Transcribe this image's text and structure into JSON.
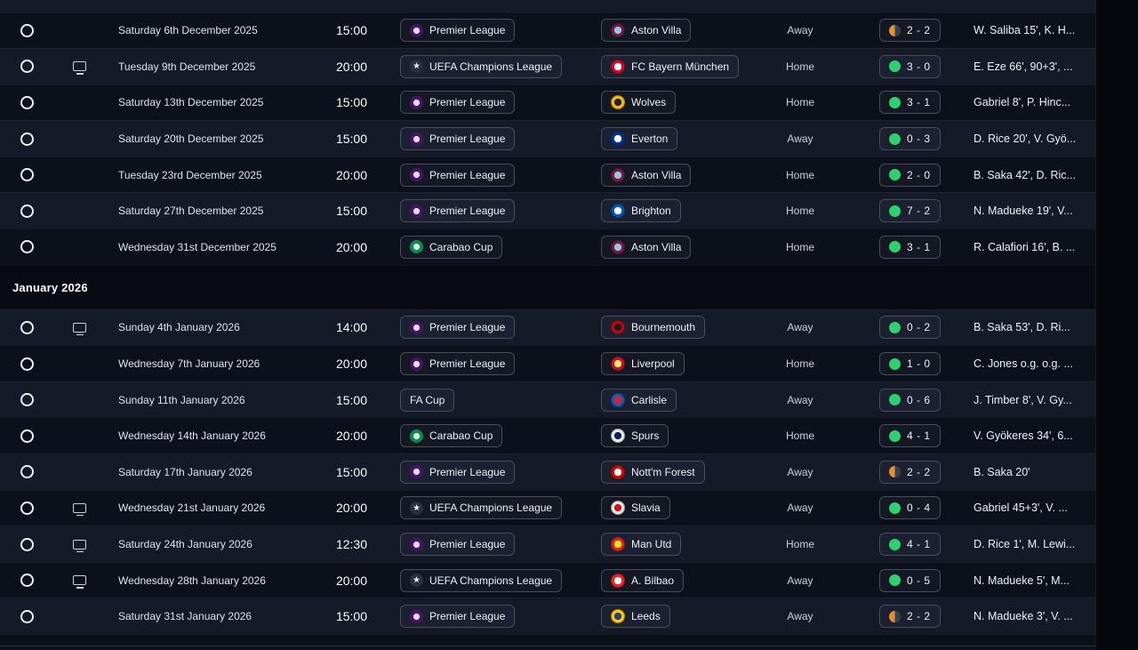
{
  "list": {
    "sections": [
      {
        "header": "",
        "rows": [
          {
            "date": "Saturday 6th December 2025",
            "time": "15:00",
            "competition": "Premier League",
            "opponent": "Aston Villa",
            "venue": "Away",
            "score": "2 - 2",
            "result": "draw",
            "scorers": "W. Saliba 15', K. H...",
            "tv": false
          },
          {
            "date": "Tuesday 9th December 2025",
            "time": "20:00",
            "competition": "UEFA Champions League",
            "opponent": "FC Bayern München",
            "venue": "Home",
            "score": "3 - 0",
            "result": "win",
            "scorers": "E. Eze 66', 90+3', ...",
            "tv": true
          },
          {
            "date": "Saturday 13th December 2025",
            "time": "15:00",
            "competition": "Premier League",
            "opponent": "Wolves",
            "venue": "Home",
            "score": "3 - 1",
            "result": "win",
            "scorers": "Gabriel 8', P. Hinc...",
            "tv": false
          },
          {
            "date": "Saturday 20th December 2025",
            "time": "15:00",
            "competition": "Premier League",
            "opponent": "Everton",
            "venue": "Away",
            "score": "0 - 3",
            "result": "win",
            "scorers": "D. Rice 20', V. Gyö...",
            "tv": false
          },
          {
            "date": "Tuesday 23rd December 2025",
            "time": "20:00",
            "competition": "Premier League",
            "opponent": "Aston Villa",
            "venue": "Home",
            "score": "2 - 0",
            "result": "win",
            "scorers": "B. Saka 42', D. Ric...",
            "tv": false
          },
          {
            "date": "Saturday 27th December 2025",
            "time": "15:00",
            "competition": "Premier League",
            "opponent": "Brighton",
            "venue": "Home",
            "score": "7 - 2",
            "result": "win",
            "scorers": "N. Madueke 19', V...",
            "tv": false
          },
          {
            "date": "Wednesday 31st December 2025",
            "time": "20:00",
            "competition": "Carabao Cup",
            "opponent": "Aston Villa",
            "venue": "Home",
            "score": "3 - 1",
            "result": "win",
            "scorers": "R. Calafiori 16', B. ...",
            "tv": false
          }
        ]
      },
      {
        "header": "January 2026",
        "rows": [
          {
            "date": "Sunday 4th January 2026",
            "time": "14:00",
            "competition": "Premier League",
            "opponent": "Bournemouth",
            "venue": "Away",
            "score": "0 - 2",
            "result": "win",
            "scorers": "B. Saka 53', D. Ri...",
            "tv": true
          },
          {
            "date": "Wednesday 7th January 2026",
            "time": "20:00",
            "competition": "Premier League",
            "opponent": "Liverpool",
            "venue": "Home",
            "score": "1 - 0",
            "result": "win",
            "scorers": "C. Jones o.g. o.g. ...",
            "tv": false
          },
          {
            "date": "Sunday 11th January 2026",
            "time": "15:00",
            "competition": "FA Cup",
            "opponent": "Carlisle",
            "venue": "Away",
            "score": "0 - 6",
            "result": "win",
            "scorers": "J. Timber 8', V. Gy...",
            "tv": false
          },
          {
            "date": "Wednesday 14th January 2026",
            "time": "20:00",
            "competition": "Carabao Cup",
            "opponent": "Spurs",
            "venue": "Home",
            "score": "4 - 1",
            "result": "win",
            "scorers": "V. Gyökeres 34', 6...",
            "tv": false
          },
          {
            "date": "Saturday 17th January 2026",
            "time": "15:00",
            "competition": "Premier League",
            "opponent": "Nott'm Forest",
            "venue": "Away",
            "score": "2 - 2",
            "result": "draw",
            "scorers": "B. Saka 20'",
            "tv": false
          },
          {
            "date": "Wednesday 21st January 2026",
            "time": "20:00",
            "competition": "UEFA Champions League",
            "opponent": "Slavia",
            "venue": "Away",
            "score": "0 - 4",
            "result": "win",
            "scorers": "Gabriel 45+3', V. ...",
            "tv": true
          },
          {
            "date": "Saturday 24th January 2026",
            "time": "12:30",
            "competition": "Premier League",
            "opponent": "Man Utd",
            "venue": "Home",
            "score": "4 - 1",
            "result": "win",
            "scorers": "D. Rice 1', M. Lewi...",
            "tv": true
          },
          {
            "date": "Wednesday 28th January 2026",
            "time": "20:00",
            "competition": "UEFA Champions League",
            "opponent": "A. Bilbao",
            "venue": "Away",
            "score": "0 - 5",
            "result": "win",
            "scorers": "N. Madueke 5', M...",
            "tv": true
          },
          {
            "date": "Saturday 31st January 2026",
            "time": "15:00",
            "competition": "Premier League",
            "opponent": "Leeds",
            "venue": "Away",
            "score": "2 - 2",
            "result": "draw",
            "scorers": "N. Madueke 3', V. ...",
            "tv": false
          }
        ]
      }
    ]
  },
  "competition_icons": {
    "Premier League": {
      "outer": "#451463",
      "inner": "#e9d8f2",
      "glyph": ""
    },
    "UEFA Champions League": {
      "outer": "#2a3040",
      "inner": "#dfe4ec",
      "glyph": "★"
    },
    "Carabao Cup": {
      "outer": "#0c8a4e",
      "inner": "#d9f2e4",
      "glyph": ""
    }
  },
  "team_badges": {
    "Aston Villa": [
      "#6e1c44",
      "#9cc3e4"
    ],
    "FC Bayern München": [
      "#dc052d",
      "#ffffff"
    ],
    "Wolves": [
      "#fdb913",
      "#231f20"
    ],
    "Everton": [
      "#00369c",
      "#ffffff"
    ],
    "Brighton": [
      "#0057b8",
      "#ffffff"
    ],
    "Bournemouth": [
      "#b50e12",
      "#1a1a1a"
    ],
    "Liverpool": [
      "#c8102e",
      "#f6eb61"
    ],
    "Carlisle": [
      "#1d59af",
      "#e31b23"
    ],
    "Spurs": [
      "#e8ecf2",
      "#132257"
    ],
    "Nott'm Forest": [
      "#dd0000",
      "#ffffff"
    ],
    "Slavia": [
      "#e8e8e8",
      "#d01317"
    ],
    "Man Utd": [
      "#da291c",
      "#fbe122"
    ],
    "A. Bilbao": [
      "#ee2523",
      "#ffffff"
    ],
    "Leeds": [
      "#ffcd00",
      "#1d428a"
    ]
  },
  "result_colors": {
    "win": "#2fd06f",
    "draw": "#e89030",
    "draw_empty": "#39414f"
  }
}
